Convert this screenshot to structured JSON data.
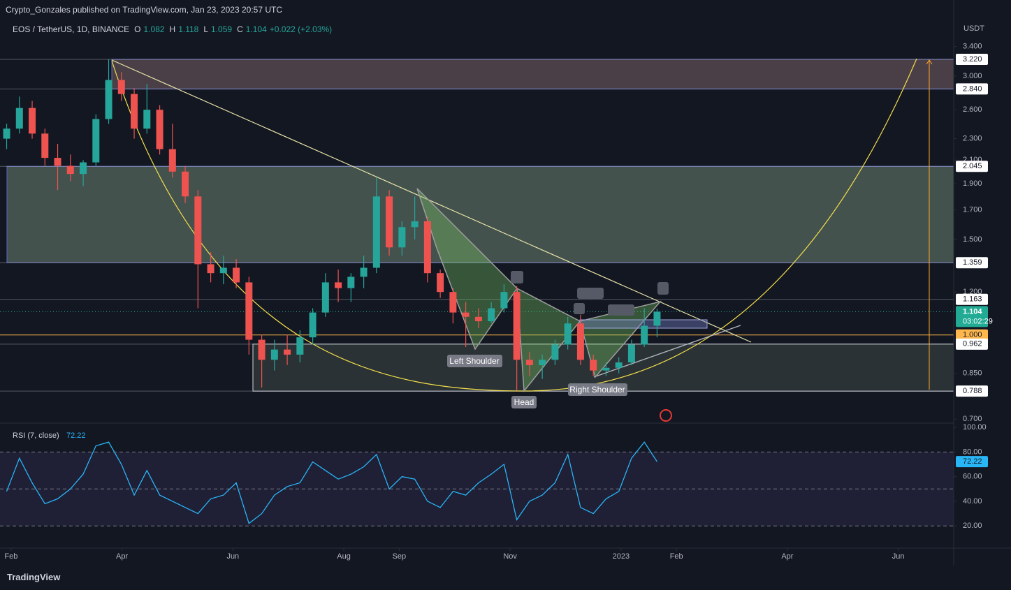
{
  "header": {
    "published": "Crypto_Gonzales published on TradingView.com, Jan 23, 2023 20:57 UTC"
  },
  "legend": {
    "symbol": "EOS / TetherUS, 1D, BINANCE",
    "ohlc": [
      {
        "key": "O",
        "value": "1.082"
      },
      {
        "key": "H",
        "value": "1.118"
      },
      {
        "key": "L",
        "value": "1.059"
      },
      {
        "key": "C",
        "value": "1.104"
      }
    ],
    "change": "+0.022 (+2.03%)"
  },
  "chart_data": [
    {
      "type": "candlestick",
      "y_unit": "USDT",
      "log_scale": true,
      "up_color": "#26a69a",
      "down_color": "#ef5350",
      "x": [
        -0.08,
        0.15,
        0.38,
        0.61,
        0.84,
        1.07,
        1.3,
        1.53,
        1.76,
        1.99,
        2.22,
        2.45,
        2.68,
        2.91,
        3.14,
        3.37,
        3.6,
        3.83,
        4.06,
        4.29,
        4.52,
        4.75,
        4.98,
        5.21,
        5.44,
        5.67,
        5.9,
        6.13,
        6.36,
        6.59,
        6.82,
        7.05,
        7.28,
        7.51,
        7.74,
        7.97,
        8.2,
        8.43,
        8.66,
        8.89,
        9.12,
        9.35,
        9.58,
        9.81,
        10.04,
        10.27,
        10.5,
        10.73,
        10.96,
        11.19,
        11.42,
        11.65
      ],
      "open": [
        2.3,
        2.4,
        2.62,
        2.35,
        2.12,
        2.05,
        1.98,
        2.08,
        2.5,
        2.95,
        2.78,
        2.4,
        2.6,
        2.2,
        2.0,
        1.8,
        1.35,
        1.3,
        1.33,
        1.25,
        0.98,
        0.9,
        0.94,
        0.92,
        0.99,
        1.1,
        1.25,
        1.22,
        1.28,
        1.33,
        1.8,
        1.45,
        1.58,
        1.62,
        1.3,
        1.2,
        1.1,
        1.08,
        1.06,
        1.12,
        1.2,
        0.9,
        0.88,
        0.9,
        0.96,
        1.05,
        0.9,
        0.86,
        0.87,
        0.89,
        0.96,
        1.04
      ],
      "high": [
        2.45,
        2.75,
        2.7,
        2.4,
        2.25,
        2.15,
        2.1,
        2.55,
        3.22,
        3.05,
        2.85,
        2.9,
        2.65,
        2.45,
        2.05,
        1.85,
        1.42,
        1.4,
        1.38,
        1.28,
        1.0,
        0.98,
        1.0,
        1.02,
        1.12,
        1.3,
        1.32,
        1.3,
        1.4,
        1.95,
        1.85,
        1.62,
        1.8,
        1.65,
        1.32,
        1.22,
        1.15,
        1.12,
        1.15,
        1.24,
        1.23,
        0.93,
        0.92,
        0.98,
        1.08,
        1.09,
        0.92,
        0.89,
        0.91,
        0.98,
        1.12,
        1.118
      ],
      "low": [
        2.2,
        2.35,
        2.3,
        2.05,
        1.85,
        1.92,
        1.88,
        2.05,
        2.45,
        2.7,
        2.3,
        2.35,
        2.15,
        1.95,
        1.75,
        1.12,
        1.25,
        1.24,
        1.22,
        0.92,
        0.8,
        0.86,
        0.88,
        0.89,
        0.96,
        1.08,
        1.15,
        1.15,
        1.22,
        1.3,
        1.4,
        1.4,
        1.5,
        1.25,
        1.17,
        1.05,
        0.95,
        1.03,
        1.05,
        1.1,
        0.79,
        0.84,
        0.83,
        0.88,
        0.94,
        0.88,
        0.84,
        0.84,
        0.85,
        0.88,
        0.95,
        0.99
      ],
      "close": [
        2.4,
        2.62,
        2.35,
        2.12,
        2.05,
        1.98,
        2.08,
        2.5,
        2.95,
        2.78,
        2.4,
        2.6,
        2.2,
        2.0,
        1.8,
        1.35,
        1.3,
        1.33,
        1.25,
        0.98,
        0.9,
        0.94,
        0.92,
        0.99,
        1.1,
        1.25,
        1.22,
        1.28,
        1.33,
        1.8,
        1.45,
        1.58,
        1.62,
        1.3,
        1.2,
        1.1,
        1.08,
        1.06,
        1.12,
        1.2,
        0.9,
        0.88,
        0.9,
        0.96,
        1.05,
        0.9,
        0.86,
        0.87,
        0.89,
        0.96,
        1.04,
        1.104
      ],
      "xlim": [
        -0.2,
        17.0
      ],
      "xticks": [
        {
          "value": 0,
          "label": "Feb"
        },
        {
          "value": 2,
          "label": "Apr"
        },
        {
          "value": 4,
          "label": "Jun"
        },
        {
          "value": 6,
          "label": "Aug"
        },
        {
          "value": 7,
          "label": "Sep"
        },
        {
          "value": 9,
          "label": "Nov"
        },
        {
          "value": 11,
          "label": "2023"
        },
        {
          "value": 12,
          "label": "Feb"
        },
        {
          "value": 14,
          "label": "Apr"
        },
        {
          "value": 16,
          "label": "Jun"
        }
      ],
      "ylim": [
        0.69,
        3.79
      ],
      "yticks": [
        {
          "value": 3.4,
          "label": "3.400"
        },
        {
          "value": 3.0,
          "label": "3.000"
        },
        {
          "value": 2.6,
          "label": "2.600"
        },
        {
          "value": 2.3,
          "label": "2.300"
        },
        {
          "value": 2.1,
          "label": "2.100"
        },
        {
          "value": 1.9,
          "label": "1.900"
        },
        {
          "value": 1.7,
          "label": "1.700"
        },
        {
          "value": 1.5,
          "label": "1.500"
        },
        {
          "value": 1.2,
          "label": "1.200"
        },
        {
          "value": 0.85,
          "label": "0.850"
        },
        {
          "value": 0.7,
          "label": "0.700"
        }
      ],
      "price_labels": [
        {
          "value": 3.22,
          "label": "3.220",
          "color": "#ffffff"
        },
        {
          "value": 2.84,
          "label": "2.840",
          "color": "#ffffff"
        },
        {
          "value": 2.045,
          "color": "#ffffff"
        },
        {
          "value": 1.359,
          "color": "#ffffff"
        },
        {
          "value": 1.163,
          "color": "#ffffff"
        },
        {
          "value": 1.104,
          "color": "#22ab94",
          "countdown": "03:02:29"
        },
        {
          "value": 1.0,
          "label": "1.000",
          "color": "#ffb74d"
        },
        {
          "value": 0.962,
          "color": "#ffffff"
        },
        {
          "value": 0.788,
          "color": "#ffffff"
        }
      ],
      "annotations": [
        "Left Shoulder",
        "Head",
        "Right Shoulder"
      ]
    },
    {
      "type": "line",
      "title": "RSI (7, close)",
      "color": "#29b6f6",
      "values": [
        48,
        75,
        55,
        38,
        42,
        50,
        62,
        85,
        88,
        70,
        45,
        65,
        45,
        40,
        35,
        30,
        42,
        45,
        55,
        22,
        30,
        45,
        52,
        55,
        72,
        65,
        58,
        62,
        68,
        78,
        50,
        60,
        58,
        40,
        35,
        48,
        45,
        55,
        62,
        70,
        25,
        40,
        45,
        55,
        78,
        35,
        30,
        42,
        48,
        75,
        88,
        72.22
      ],
      "ylim": [
        2,
        104
      ],
      "yticks": [
        {
          "value": 100,
          "label": "100.00"
        },
        {
          "value": 80,
          "label": "80.00"
        },
        {
          "value": 60,
          "label": "60.00"
        },
        {
          "value": 40,
          "label": "40.00"
        },
        {
          "value": 20,
          "label": "20.00"
        }
      ],
      "levels": [
        80,
        50,
        20
      ]
    }
  ],
  "footer": {
    "brand": "TradingView"
  }
}
